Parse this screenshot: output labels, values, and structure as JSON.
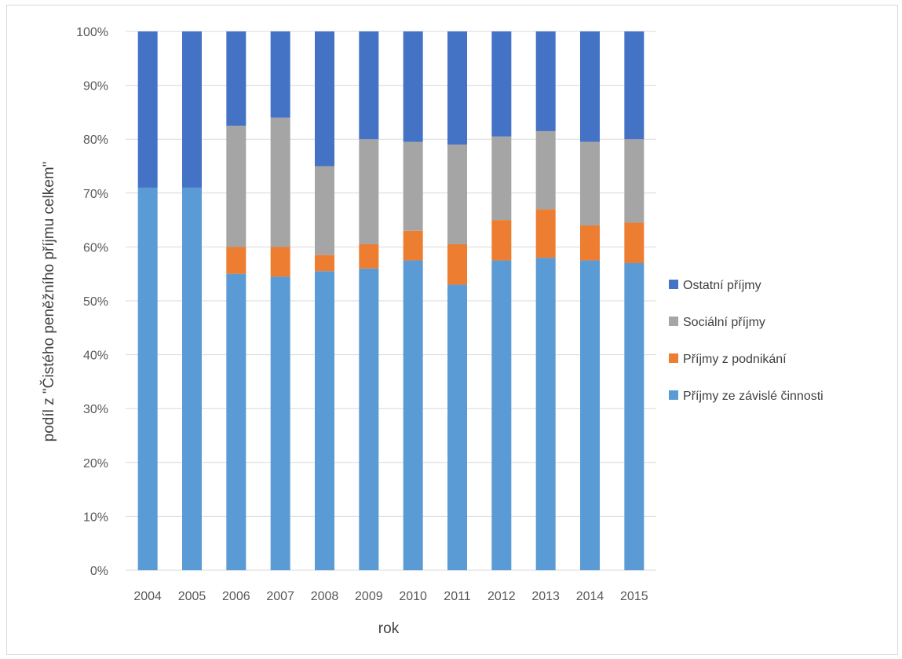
{
  "chart_data": {
    "type": "bar",
    "stacked": true,
    "percent_stacked": true,
    "title": "",
    "xlabel": "rok",
    "ylabel": "podíl z \"Čistého peněžního příjmu celkem\"",
    "ylim": [
      0,
      100
    ],
    "y_ticks": [
      "0%",
      "10%",
      "20%",
      "30%",
      "40%",
      "50%",
      "60%",
      "70%",
      "80%",
      "90%",
      "100%"
    ],
    "grid": true,
    "legend_position": "right",
    "categories": [
      "2004",
      "2005",
      "2006",
      "2007",
      "2008",
      "2009",
      "2010",
      "2011",
      "2012",
      "2013",
      "2014",
      "2015"
    ],
    "series": [
      {
        "name": "Příjmy ze závislé činnosti",
        "color": "#5b9bd5",
        "values": [
          71.0,
          71.0,
          55.0,
          54.5,
          55.5,
          56.0,
          57.5,
          53.0,
          57.5,
          58.0,
          57.5,
          57.0
        ]
      },
      {
        "name": "Příjmy z podnikání",
        "color": "#ed7d31",
        "values": [
          0,
          0,
          5.0,
          5.5,
          3.0,
          4.5,
          5.5,
          7.5,
          7.5,
          9.0,
          6.5,
          7.5
        ]
      },
      {
        "name": "Sociální příjmy",
        "color": "#a5a5a5",
        "values": [
          0,
          0,
          22.5,
          24.0,
          16.5,
          19.5,
          16.5,
          18.5,
          15.5,
          14.5,
          15.5,
          15.5
        ]
      },
      {
        "name": "Ostatní příjmy",
        "color": "#4472c4",
        "values": [
          29.0,
          29.0,
          17.5,
          16.0,
          25.0,
          20.0,
          20.5,
          21.0,
          19.5,
          18.5,
          20.5,
          20.0
        ]
      }
    ]
  }
}
